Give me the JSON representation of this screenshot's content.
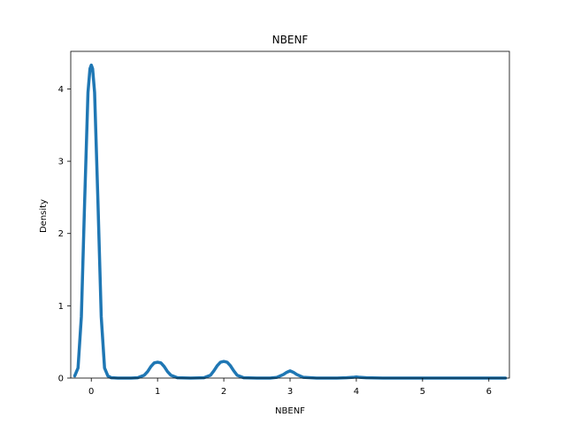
{
  "chart_data": {
    "type": "line",
    "title": "NBENF",
    "xlabel": "NBENF",
    "ylabel": "Density",
    "xlim": [
      -0.31,
      6.31
    ],
    "ylim": [
      0,
      4.52
    ],
    "grid": false,
    "x_ticks": [
      0,
      1,
      2,
      3,
      4,
      5,
      6
    ],
    "y_ticks": [
      0,
      1,
      2,
      3,
      4
    ],
    "color": "#1f77b4",
    "series": [
      {
        "x": [
          -0.25,
          -0.2,
          -0.15,
          -0.1,
          -0.05,
          -0.02,
          0.0,
          0.02,
          0.05,
          0.1,
          0.15,
          0.2,
          0.25,
          0.3,
          0.4,
          0.5,
          0.6,
          0.7,
          0.8,
          0.85,
          0.9,
          0.95,
          1.0,
          1.05,
          1.1,
          1.15,
          1.2,
          1.3,
          1.5,
          1.7,
          1.8,
          1.85,
          1.9,
          1.95,
          2.0,
          2.05,
          2.1,
          2.15,
          2.2,
          2.3,
          2.5,
          2.7,
          2.8,
          2.9,
          2.95,
          3.0,
          3.05,
          3.1,
          3.2,
          3.4,
          3.7,
          3.85,
          3.95,
          4.0,
          4.05,
          4.15,
          4.4,
          5.0,
          5.5,
          6.0,
          6.25
        ],
        "y": [
          0.03,
          0.14,
          0.85,
          2.45,
          3.95,
          4.28,
          4.33,
          4.28,
          3.95,
          2.45,
          0.85,
          0.14,
          0.03,
          0.005,
          0.0,
          0.0,
          0.0,
          0.005,
          0.04,
          0.09,
          0.16,
          0.21,
          0.22,
          0.21,
          0.16,
          0.09,
          0.04,
          0.005,
          0.0,
          0.005,
          0.04,
          0.1,
          0.17,
          0.22,
          0.23,
          0.22,
          0.17,
          0.1,
          0.04,
          0.005,
          0.0,
          0.0,
          0.01,
          0.05,
          0.08,
          0.1,
          0.08,
          0.05,
          0.01,
          0.0,
          0.0,
          0.004,
          0.01,
          0.015,
          0.01,
          0.004,
          0.0,
          0.0,
          0.0,
          0.0,
          0.0
        ]
      }
    ]
  }
}
